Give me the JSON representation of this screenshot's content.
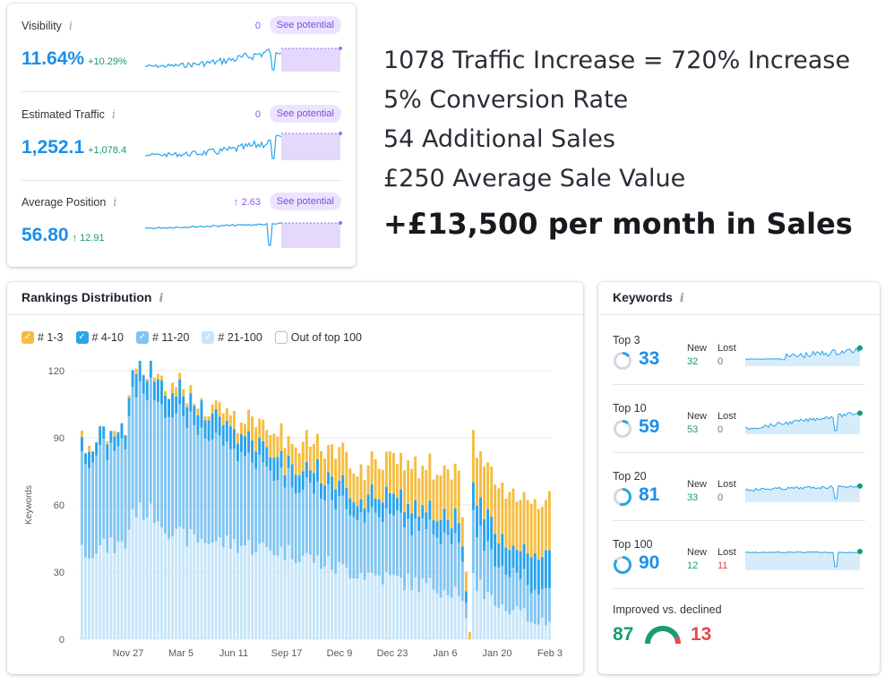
{
  "colors": {
    "accent_blue": "#1c8fe8",
    "positive_green": "#1a9b70",
    "negative_red": "#e5484d",
    "potential_purple": "#7b4ce0",
    "series_1_3": "#f5bd3f",
    "series_4_10": "#29a3ec",
    "series_11_20": "#7fc4f2",
    "series_21_100": "#c6e5fa"
  },
  "metrics": [
    {
      "label": "Visibility",
      "info_icon": "info-icon",
      "count": "0",
      "potential": "See potential",
      "value": "11.64%",
      "delta": "+10.29%"
    },
    {
      "label": "Estimated Traffic",
      "info_icon": "info-icon",
      "count": "0",
      "potential": "See potential",
      "value": "1,252.1",
      "delta": "+1,078.4"
    },
    {
      "label": "Average Position",
      "info_icon": "info-icon",
      "count": "↑ 2.63",
      "potential": "See potential",
      "value": "56.80",
      "delta": "↑ 12.91"
    }
  ],
  "headline": {
    "lines": [
      "1078 Traffic Increase = 720% Increase",
      "5% Conversion Rate",
      "54 Additional Sales",
      "£250 Average Sale Value"
    ],
    "result": "+£13,500 per month in Sales"
  },
  "rankings": {
    "title": "Rankings Distribution",
    "legend": [
      "# 1-3",
      "# 4-10",
      "# 11-20",
      "# 21-100",
      "Out of top 100"
    ]
  },
  "chart_data": {
    "type": "bar",
    "stacked": true,
    "title": "Rankings Distribution",
    "ylabel": "Keywords",
    "ylim": [
      0,
      120
    ],
    "yticks": [
      0,
      30,
      60,
      90,
      120
    ],
    "grid": true,
    "legend_placement": "top-left",
    "xtick_labels": [
      "Nov 27",
      "Mar 5",
      "Jun 11",
      "Sep 17",
      "Dec 9",
      "Dec 23",
      "Jan 6",
      "Jan 20",
      "Feb 3"
    ],
    "series": [
      {
        "name": "# 21-100",
        "approx_profile": [
          [
            0,
            40
          ],
          [
            12,
            42
          ],
          [
            14,
            58
          ],
          [
            20,
            56
          ],
          [
            26,
            46
          ],
          [
            45,
            42
          ],
          [
            60,
            38
          ],
          [
            70,
            32
          ],
          [
            95,
            24
          ],
          [
            104,
            22
          ],
          [
            107,
            0
          ],
          [
            108,
            28
          ],
          [
            115,
            12
          ],
          [
            129,
            8
          ]
        ]
      },
      {
        "name": "# 11-20",
        "approx_profile": [
          [
            0,
            42
          ],
          [
            12,
            44
          ],
          [
            14,
            54
          ],
          [
            20,
            55
          ],
          [
            30,
            52
          ],
          [
            45,
            40
          ],
          [
            60,
            32
          ],
          [
            75,
            28
          ],
          [
            95,
            26
          ],
          [
            104,
            24
          ],
          [
            107,
            0
          ],
          [
            108,
            26
          ],
          [
            115,
            18
          ],
          [
            129,
            14
          ]
        ]
      },
      {
        "name": "# 4-10",
        "approx_profile": [
          [
            0,
            6
          ],
          [
            12,
            6
          ],
          [
            14,
            8
          ],
          [
            20,
            10
          ],
          [
            35,
            10
          ],
          [
            50,
            8
          ],
          [
            65,
            8
          ],
          [
            90,
            8
          ],
          [
            104,
            9
          ],
          [
            107,
            0
          ],
          [
            108,
            14
          ],
          [
            120,
            12
          ],
          [
            129,
            18
          ]
        ]
      },
      {
        "name": "# 1-3",
        "approx_profile": [
          [
            0,
            1
          ],
          [
            12,
            1
          ],
          [
            14,
            1
          ],
          [
            20,
            2
          ],
          [
            33,
            3
          ],
          [
            45,
            8
          ],
          [
            60,
            12
          ],
          [
            75,
            14
          ],
          [
            90,
            18
          ],
          [
            104,
            22
          ],
          [
            107,
            1
          ],
          [
            108,
            22
          ],
          [
            120,
            24
          ],
          [
            129,
            24
          ]
        ]
      },
      {
        "name": "Out of top 100",
        "approx_profile": []
      }
    ],
    "bar_count": 130
  },
  "keywords": {
    "title": "Keywords",
    "new_label": "New",
    "lost_label": "Lost",
    "rows": [
      {
        "label": "Top 3",
        "value": "33",
        "new": "32",
        "lost": "0",
        "lost_red": false,
        "ring_fill": 0.15
      },
      {
        "label": "Top 10",
        "value": "59",
        "new": "53",
        "lost": "0",
        "lost_red": false,
        "ring_fill": 0.12
      },
      {
        "label": "Top 20",
        "value": "81",
        "new": "33",
        "lost": "0",
        "lost_red": false,
        "ring_fill": 0.55
      },
      {
        "label": "Top 100",
        "value": "90",
        "new": "12",
        "lost": "11",
        "lost_red": true,
        "ring_fill": 0.85
      }
    ],
    "improved": {
      "label": "Improved vs. declined",
      "improved": "87",
      "declined": "13",
      "gauge_share": 0.87
    }
  }
}
